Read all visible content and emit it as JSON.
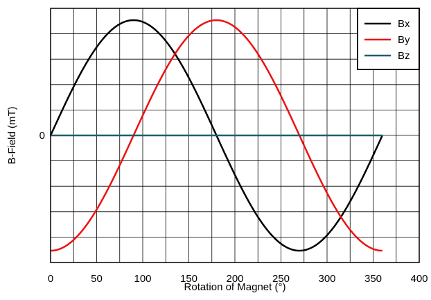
{
  "chart_data": {
    "type": "line",
    "title": "",
    "xlabel": "Rotation of Magnet (°)",
    "ylabel": "B-Field (mT)",
    "xlim": [
      0,
      400
    ],
    "ylim": [
      -1,
      1
    ],
    "x_ticks": [
      "0",
      "50",
      "100",
      "150",
      "200",
      "250",
      "300",
      "350",
      "400"
    ],
    "y_ticks": [
      {
        "value": 0,
        "label": "0"
      }
    ],
    "grid": true,
    "legend_position": "top-right",
    "series": [
      {
        "name": "Bx",
        "color": "#000000",
        "x": [
          0,
          10,
          20,
          30,
          40,
          50,
          60,
          70,
          80,
          90,
          100,
          110,
          120,
          130,
          140,
          150,
          160,
          170,
          180,
          190,
          200,
          210,
          220,
          230,
          240,
          250,
          260,
          270,
          280,
          290,
          300,
          310,
          320,
          330,
          340,
          350,
          360
        ],
        "y": [
          0,
          0.174,
          0.342,
          0.5,
          0.643,
          0.766,
          0.866,
          0.94,
          0.985,
          1,
          0.985,
          0.94,
          0.866,
          0.766,
          0.643,
          0.5,
          0.342,
          0.174,
          0,
          -0.174,
          -0.342,
          -0.5,
          -0.643,
          -0.766,
          -0.866,
          -0.94,
          -0.985,
          -1,
          -0.985,
          -0.94,
          -0.866,
          -0.766,
          -0.643,
          -0.5,
          -0.342,
          -0.174,
          0
        ]
      },
      {
        "name": "By",
        "color": "#ee1111",
        "x": [
          0,
          10,
          20,
          30,
          40,
          50,
          60,
          70,
          80,
          90,
          100,
          110,
          120,
          130,
          140,
          150,
          160,
          170,
          180,
          190,
          200,
          210,
          220,
          230,
          240,
          250,
          260,
          270,
          280,
          290,
          300,
          310,
          320,
          330,
          340,
          350,
          360
        ],
        "y": [
          -1,
          -0.985,
          -0.94,
          -0.866,
          -0.766,
          -0.643,
          -0.5,
          -0.342,
          -0.174,
          0,
          0.174,
          0.342,
          0.5,
          0.643,
          0.766,
          0.866,
          0.94,
          0.985,
          1,
          0.985,
          0.94,
          0.866,
          0.766,
          0.643,
          0.5,
          0.342,
          0.174,
          0,
          -0.174,
          -0.342,
          -0.5,
          -0.643,
          -0.766,
          -0.866,
          -0.94,
          -0.985,
          -1
        ]
      },
      {
        "name": "Bz",
        "color": "#1f5f6b",
        "x": [
          0,
          360
        ],
        "y": [
          0,
          0
        ]
      }
    ]
  }
}
